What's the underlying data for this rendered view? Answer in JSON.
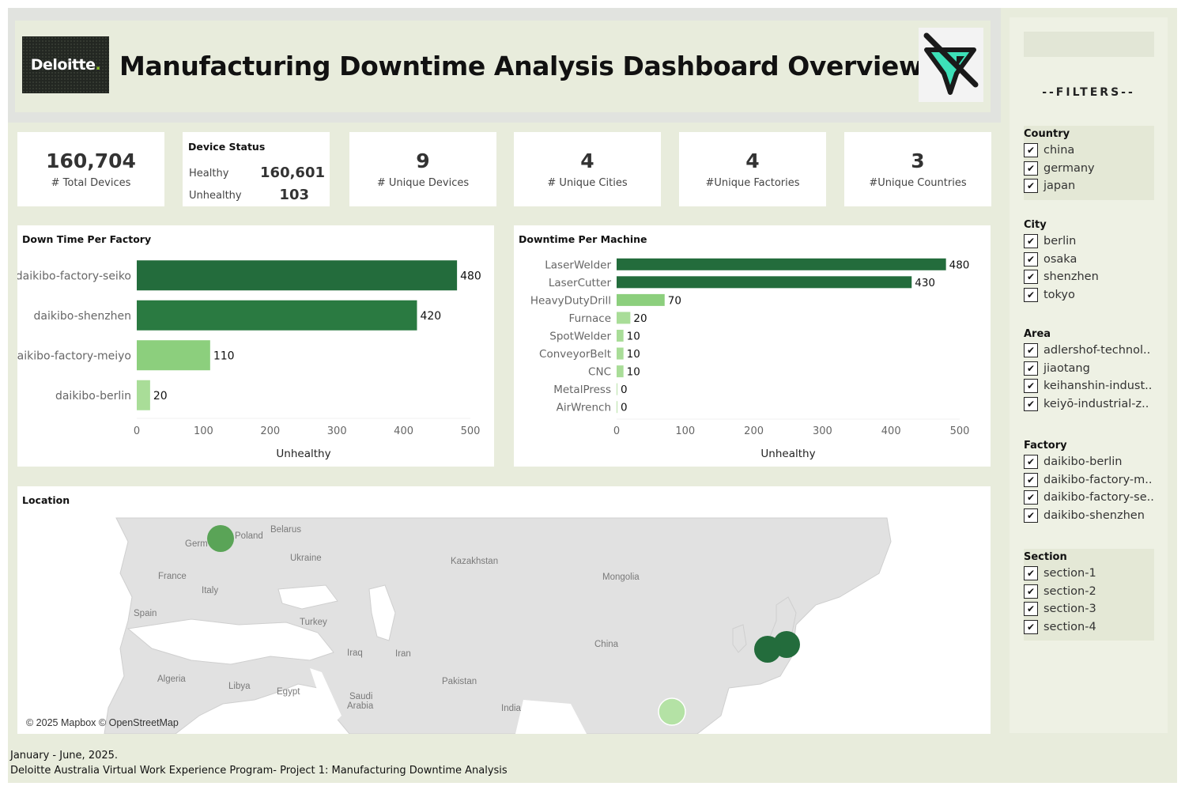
{
  "header": {
    "logo_text": "Deloitte",
    "logo_dot": ".",
    "title": "Manufacturing Downtime Analysis Dashboard Overview",
    "filter_icon": "funnel-cross-icon"
  },
  "kpis": {
    "total_devices": {
      "value": "160,704",
      "label": "# Total  Devices"
    },
    "unique_devices": {
      "value": "9",
      "label": "# Unique Devices"
    },
    "unique_cities": {
      "value": "4",
      "label": "# Unique Cities"
    },
    "unique_factories": {
      "value": "4",
      "label": "#Unique Factories"
    },
    "unique_countries": {
      "value": "3",
      "label": "#Unique Countries"
    }
  },
  "device_status": {
    "title": "Device  Status",
    "healthy_label": "Healthy",
    "healthy_value": "160,601",
    "unhealthy_label": "Unhealthy",
    "unhealthy_value": "103"
  },
  "chart_data": [
    {
      "type": "bar",
      "orientation": "horizontal",
      "title": "Down Time Per Factory",
      "xlabel": "Unhealthy",
      "categories": [
        "daikibo-factory-seiko",
        "daikibo-shenzhen",
        "daikibo-factory-meiyo",
        "daikibo-berlin"
      ],
      "values": [
        480,
        420,
        110,
        20
      ],
      "xlim": [
        0,
        500
      ],
      "ticks": [
        0,
        100,
        200,
        300,
        400,
        500
      ],
      "colors": [
        "#236c3c",
        "#2a7a41",
        "#8ccf7d",
        "#a9dd98"
      ]
    },
    {
      "type": "bar",
      "orientation": "horizontal",
      "title": "Downtime Per Machine",
      "xlabel": "Unhealthy",
      "categories": [
        "LaserWelder",
        "LaserCutter",
        "HeavyDutyDrill",
        "Furnace",
        "SpotWelder",
        "ConveyorBelt",
        "CNC",
        "MetalPress",
        "AirWrench"
      ],
      "values": [
        480,
        430,
        70,
        20,
        10,
        10,
        10,
        0,
        0
      ],
      "xlim": [
        0,
        500
      ],
      "ticks": [
        0,
        100,
        200,
        300,
        400,
        500
      ],
      "colors": [
        "#236c3c",
        "#236c3c",
        "#8ccf7d",
        "#a9dd98",
        "#a9dd98",
        "#a9dd98",
        "#a9dd98",
        "#b8e2a8",
        "#b8e2a8"
      ]
    }
  ],
  "location": {
    "title": "Location",
    "attribution": "© 2025 Mapbox © OpenStreetMap",
    "labels": [
      "Belarus",
      "Poland",
      "Germ",
      "Ukraine",
      "France",
      "Italy",
      "Spain",
      "Turkey",
      "Kazakhstan",
      "Mongolia",
      "Iraq",
      "Iran",
      "China",
      "Algeria",
      "Libya",
      "Egypt",
      "Saudi",
      "Arabia",
      "Pakistan",
      "India"
    ]
  },
  "sidebar": {
    "title": "--FILTERS--",
    "groups": [
      {
        "name": "Country",
        "items": [
          "china",
          "germany",
          "japan"
        ]
      },
      {
        "name": "City",
        "items": [
          "berlin",
          "osaka",
          "shenzhen",
          "tokyo"
        ]
      },
      {
        "name": "Area",
        "items": [
          "adlershof-technol..",
          "jiaotang",
          "keihanshin-indust..",
          "keiyō-industrial-z.."
        ]
      },
      {
        "name": "Factory",
        "items": [
          "daikibo-berlin",
          "daikibo-factory-m..",
          "daikibo-factory-se..",
          "daikibo-shenzhen"
        ]
      },
      {
        "name": "Section",
        "items": [
          "section-1",
          "section-2",
          "section-3",
          "section-4"
        ]
      }
    ],
    "check_mark": "✔"
  },
  "footer": {
    "line1": "January - June, 2025.",
    "line2": "Deloitte Australia Virtual Work Experience Program-  Project 1:  Manufacturing Downtime Analysis"
  }
}
